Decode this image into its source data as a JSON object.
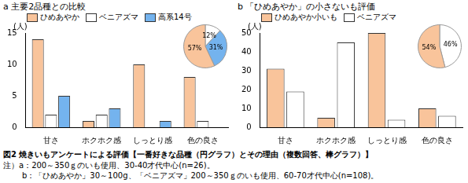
{
  "chart_data": [
    {
      "type": "bar",
      "title": "a 主要2品種との比較",
      "ylabel": "(人)",
      "categories": [
        "甘さ",
        "ホクホク感",
        "しっとり感",
        "色の良さ"
      ],
      "series": [
        {
          "name": "ひめあやか",
          "color": "#F9C49B",
          "values": [
            14,
            1,
            10,
            8
          ]
        },
        {
          "name": "ベニアズマ",
          "color": "#FFFFFF",
          "values": [
            2,
            2,
            0,
            1
          ]
        },
        {
          "name": "高系14号",
          "color": "#74B3EE",
          "values": [
            5,
            3,
            1,
            0
          ]
        }
      ],
      "ylim": [
        0,
        15
      ],
      "yticks": [
        0,
        5,
        10,
        15
      ],
      "grid": false,
      "legend": "top-left"
    },
    {
      "type": "pie",
      "categories": [
        "ベニアズマ",
        "高系14号",
        "ひめあやか"
      ],
      "values": [
        12,
        31,
        57
      ],
      "value_labels": [
        "12%",
        "31%",
        "57%"
      ],
      "colors": [
        "#FFFFFF",
        "#74B3EE",
        "#F9C49B"
      ],
      "data_labels": true
    },
    {
      "type": "bar",
      "title": "b 「ひめあやか」の小さないも評価",
      "ylabel": "(人)",
      "categories": [
        "甘さ",
        "ホクホク感",
        "しっとり感",
        "色の良さ"
      ],
      "series": [
        {
          "name": "ひめあやか小いも",
          "color": "#F9C49B",
          "values": [
            31,
            5,
            50,
            10
          ]
        },
        {
          "name": "ベニアズマ",
          "color": "#FFFFFF",
          "values": [
            19,
            45,
            4,
            6
          ]
        }
      ],
      "ylim": [
        0,
        50
      ],
      "yticks": [
        0,
        10,
        20,
        30,
        40,
        50
      ],
      "grid": false,
      "legend": "top-left"
    },
    {
      "type": "pie",
      "categories": [
        "ベニアズマ",
        "ひめあやか小いも"
      ],
      "values": [
        46,
        54
      ],
      "value_labels": [
        "46%",
        "54%"
      ],
      "colors": [
        "#FFFFFF",
        "#F9C49B"
      ],
      "data_labels": true
    }
  ],
  "caption": "図2 焼きいもアンケートによる評価【一番好きな品種（円グラフ）とその理由（複数回答、棒グラフ）】",
  "notes": [
    "注）a：200～350ｇのいも使用、30-40才代中心(n=26)。",
    "b：「ひめあやか」30～100g、「ベニアズマ」200～350ｇのいも使用、60-70才代中心(n=108)。"
  ]
}
